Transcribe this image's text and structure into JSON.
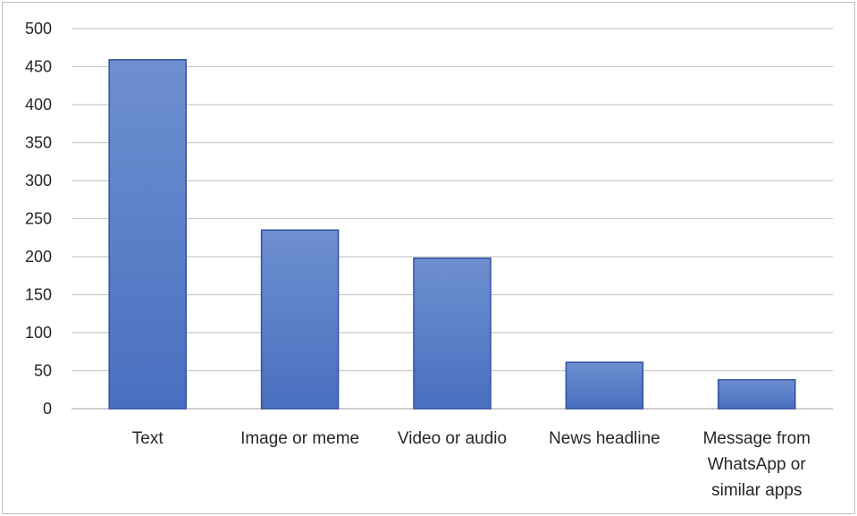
{
  "chart_data": {
    "type": "bar",
    "categories": [
      "Text",
      "Image or meme",
      "Video or audio",
      "News headline",
      "Message from WhatsApp or similar apps"
    ],
    "category_lines": [
      [
        "Text"
      ],
      [
        "Image or meme"
      ],
      [
        "Video or audio"
      ],
      [
        "News headline"
      ],
      [
        "Message from",
        "WhatsApp or",
        "similar apps"
      ]
    ],
    "values": [
      459,
      235,
      198,
      61,
      38
    ],
    "ylim": [
      0,
      500
    ],
    "yticks": [
      0,
      50,
      100,
      150,
      200,
      250,
      300,
      350,
      400,
      450,
      500
    ],
    "grid": true,
    "legend": "none",
    "colors": {
      "bar_fill_top": "#6e8fd0",
      "bar_fill_bottom": "#4a6fc0",
      "bar_stroke": "#2f52a0",
      "grid": "#c9c9c9",
      "text": "#262626"
    }
  }
}
